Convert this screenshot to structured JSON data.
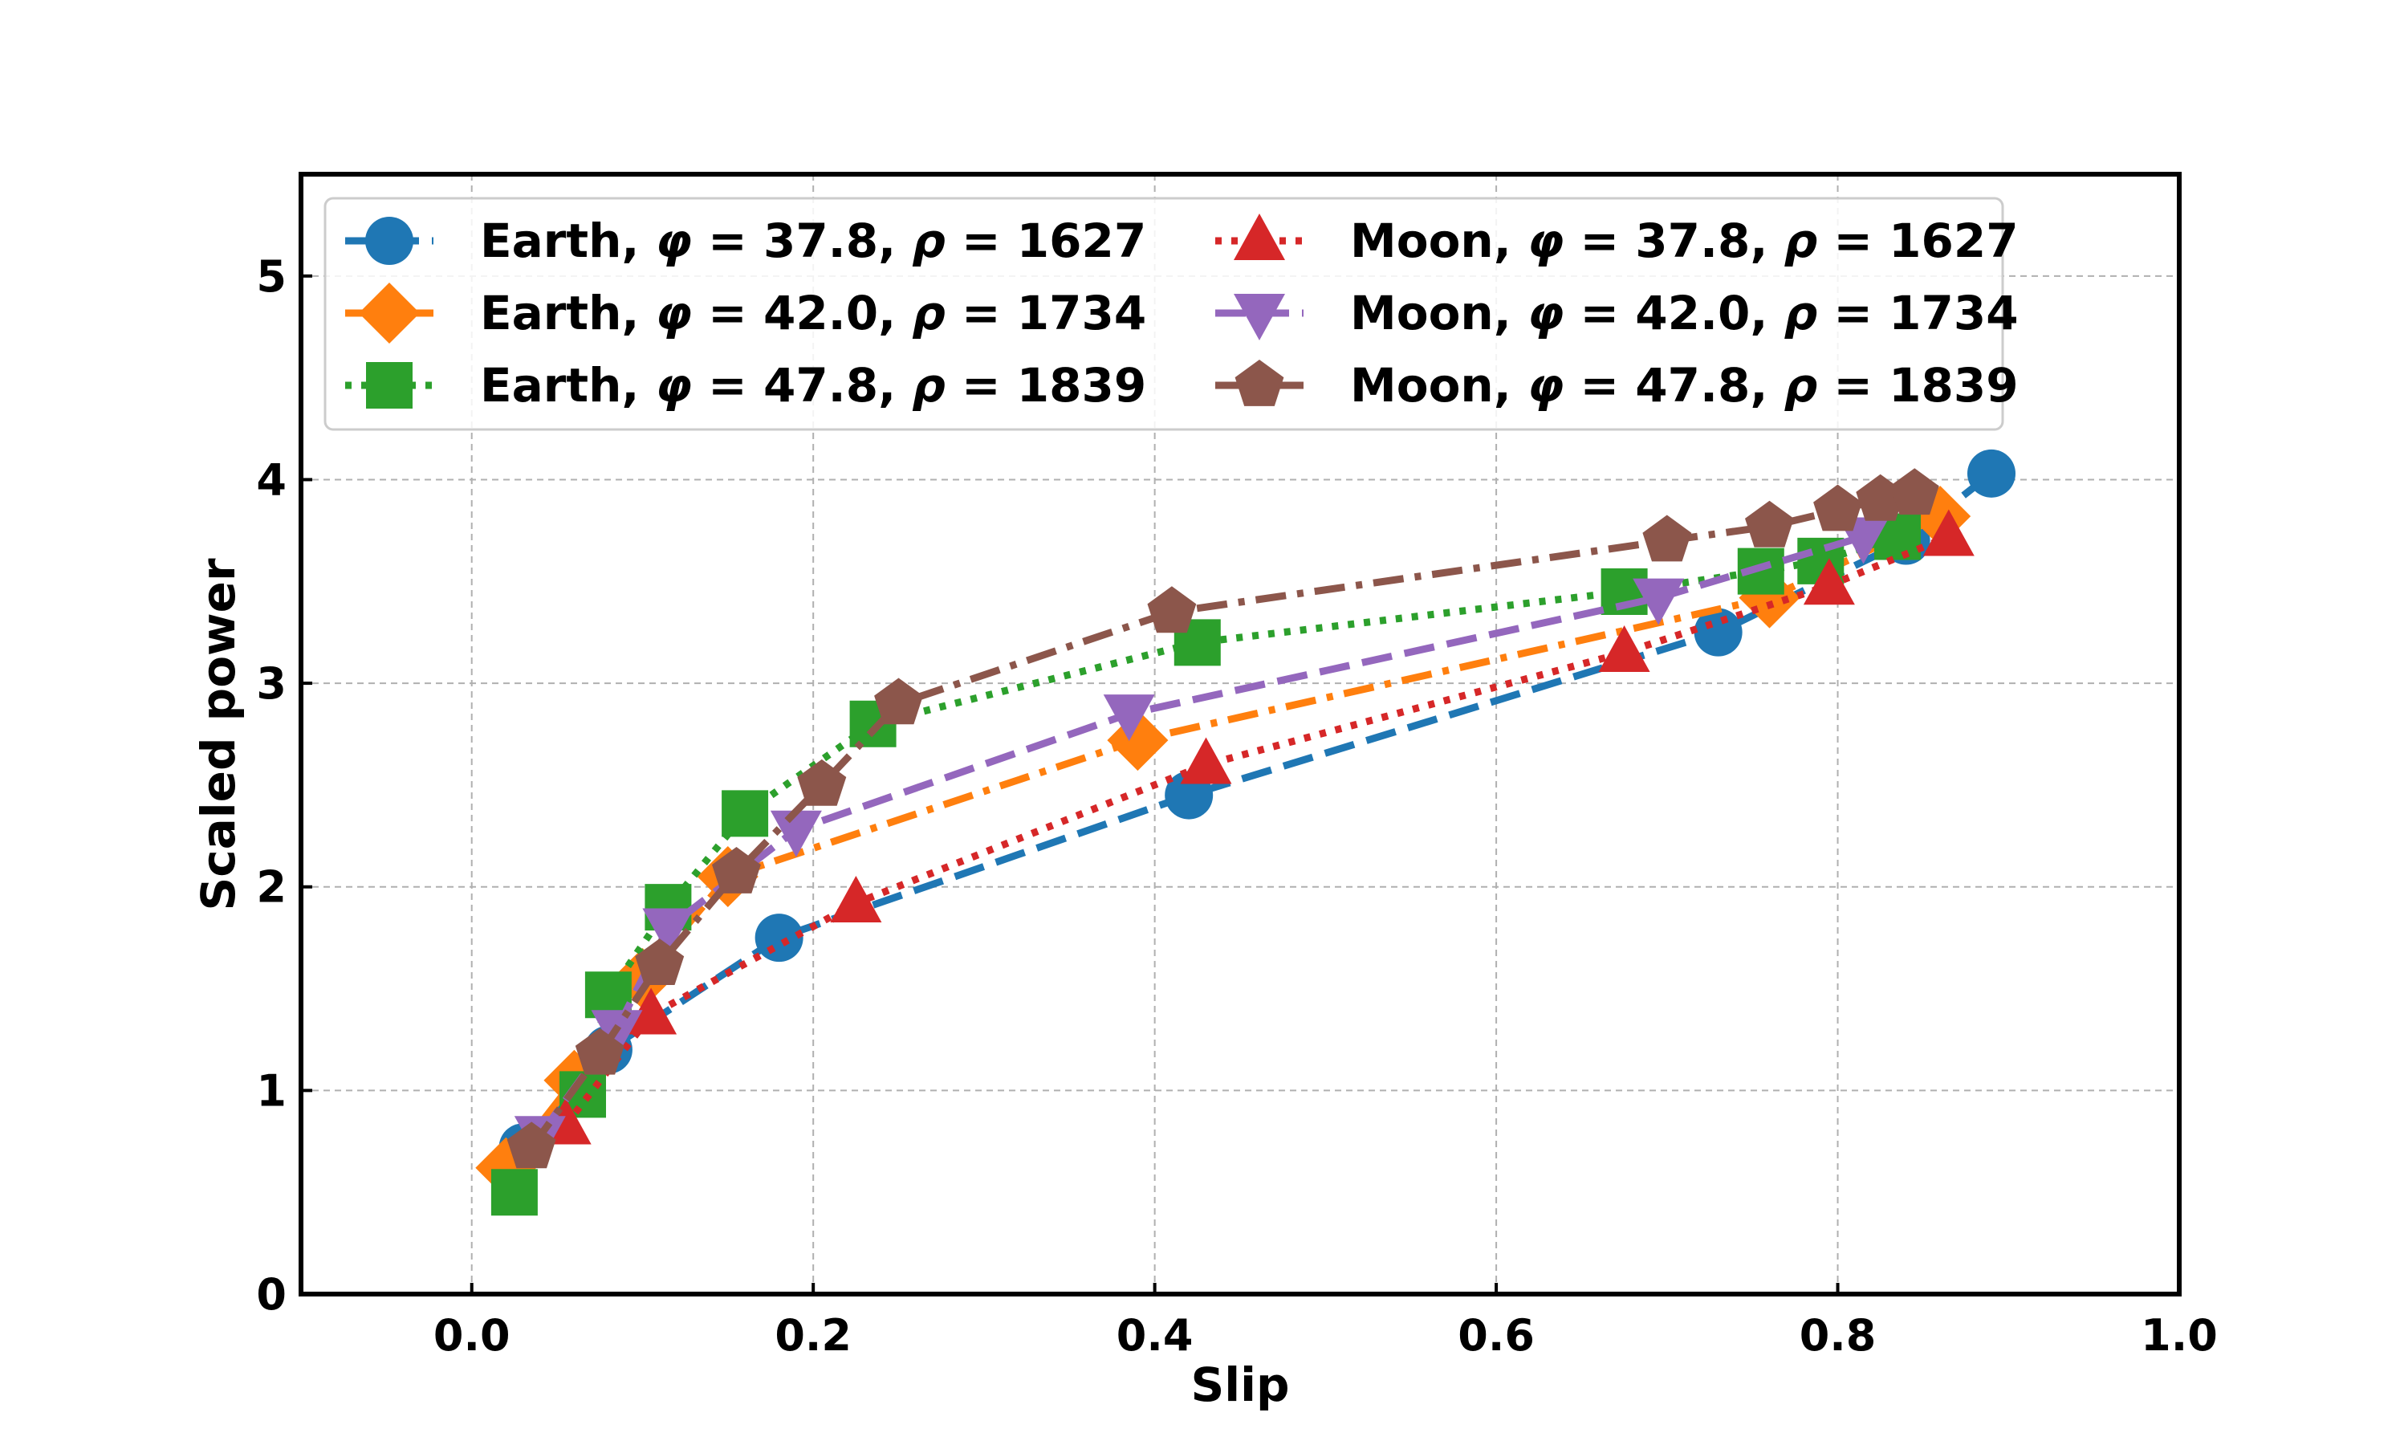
{
  "chart_data": {
    "type": "line",
    "title": "",
    "xlabel": "Slip",
    "ylabel": "Scaled power",
    "xlim": [
      -0.1,
      1.0
    ],
    "ylim": [
      0,
      5.5
    ],
    "xticks": [
      0.0,
      0.2,
      0.4,
      0.6,
      0.8,
      1.0
    ],
    "xtick_labels": [
      "0.0",
      "0.2",
      "0.4",
      "0.6",
      "0.8",
      "1.0"
    ],
    "yticks": [
      0,
      1,
      2,
      3,
      4,
      5
    ],
    "ytick_labels": [
      "0",
      "1",
      "2",
      "3",
      "4",
      "5"
    ],
    "grid": true,
    "legend_position": "upper-left, two columns",
    "series": [
      {
        "name": "Earth, φ = 37.8, ρ = 1627",
        "legend": {
          "prefix": "Earth, ",
          "phi": "φ",
          "phi_val": " = 37.8, ",
          "rho": "ρ",
          "rho_val": " = 1627"
        },
        "color": "#1f77b4",
        "marker": "circle",
        "linestyle": "dashed",
        "x": [
          0.03,
          0.08,
          0.18,
          0.42,
          0.73,
          0.84,
          0.89
        ],
        "y": [
          0.72,
          1.2,
          1.75,
          2.45,
          3.25,
          3.7,
          4.03
        ]
      },
      {
        "name": "Earth, φ = 42.0, ρ = 1734",
        "legend": {
          "prefix": "Earth, ",
          "phi": "φ",
          "phi_val": " = 42.0, ",
          "rho": "ρ",
          "rho_val": " = 1734"
        },
        "color": "#ff7f0e",
        "marker": "diamond",
        "linestyle": "dashdot",
        "x": [
          0.02,
          0.06,
          0.1,
          0.15,
          0.39,
          0.76,
          0.86
        ],
        "y": [
          0.62,
          1.05,
          1.55,
          2.05,
          2.72,
          3.42,
          3.82
        ]
      },
      {
        "name": "Earth, φ = 47.8, ρ = 1839",
        "legend": {
          "prefix": "Earth, ",
          "phi": "φ",
          "phi_val": " = 47.8, ",
          "rho": "ρ",
          "rho_val": " = 1839"
        },
        "color": "#2ca02c",
        "marker": "square",
        "linestyle": "dotted",
        "x": [
          0.025,
          0.065,
          0.08,
          0.115,
          0.16,
          0.235,
          0.425,
          0.675,
          0.755,
          0.79,
          0.835
        ],
        "y": [
          0.5,
          0.98,
          1.47,
          1.9,
          2.36,
          2.8,
          3.2,
          3.45,
          3.55,
          3.6,
          3.72
        ]
      },
      {
        "name": "Moon, φ = 37.8, ρ = 1627",
        "legend": {
          "prefix": "Moon, ",
          "phi": "φ",
          "phi_val": " = 37.8, ",
          "rho": "ρ",
          "rho_val": " = 1627"
        },
        "color": "#d62728",
        "marker": "triangle-up",
        "linestyle": "dotted",
        "x": [
          0.055,
          0.105,
          0.225,
          0.43,
          0.675,
          0.795,
          0.865
        ],
        "y": [
          0.83,
          1.37,
          1.92,
          2.6,
          3.15,
          3.48,
          3.72
        ]
      },
      {
        "name": "Moon, φ = 42.0, ρ = 1734",
        "legend": {
          "prefix": "Moon, ",
          "phi": "φ",
          "phi_val": " = 42.0, ",
          "rho": "ρ",
          "rho_val": " = 1734"
        },
        "color": "#9467bd",
        "marker": "triangle-down",
        "linestyle": "dashed",
        "x": [
          0.04,
          0.085,
          0.115,
          0.19,
          0.385,
          0.695,
          0.815
        ],
        "y": [
          0.78,
          1.3,
          1.8,
          2.28,
          2.85,
          3.42,
          3.72
        ]
      },
      {
        "name": "Moon, φ = 47.8, ρ = 1839",
        "legend": {
          "prefix": "Moon, ",
          "phi": "φ",
          "phi_val": " = 47.8, ",
          "rho": "ρ",
          "rho_val": " = 1839"
        },
        "color": "#8c564b",
        "marker": "pentagon",
        "linestyle": "dashdot",
        "x": [
          0.035,
          0.075,
          0.11,
          0.155,
          0.205,
          0.25,
          0.41,
          0.7,
          0.76,
          0.8,
          0.825,
          0.845
        ],
        "y": [
          0.72,
          1.18,
          1.62,
          2.07,
          2.5,
          2.9,
          3.35,
          3.7,
          3.77,
          3.85,
          3.9,
          3.93
        ]
      }
    ]
  }
}
